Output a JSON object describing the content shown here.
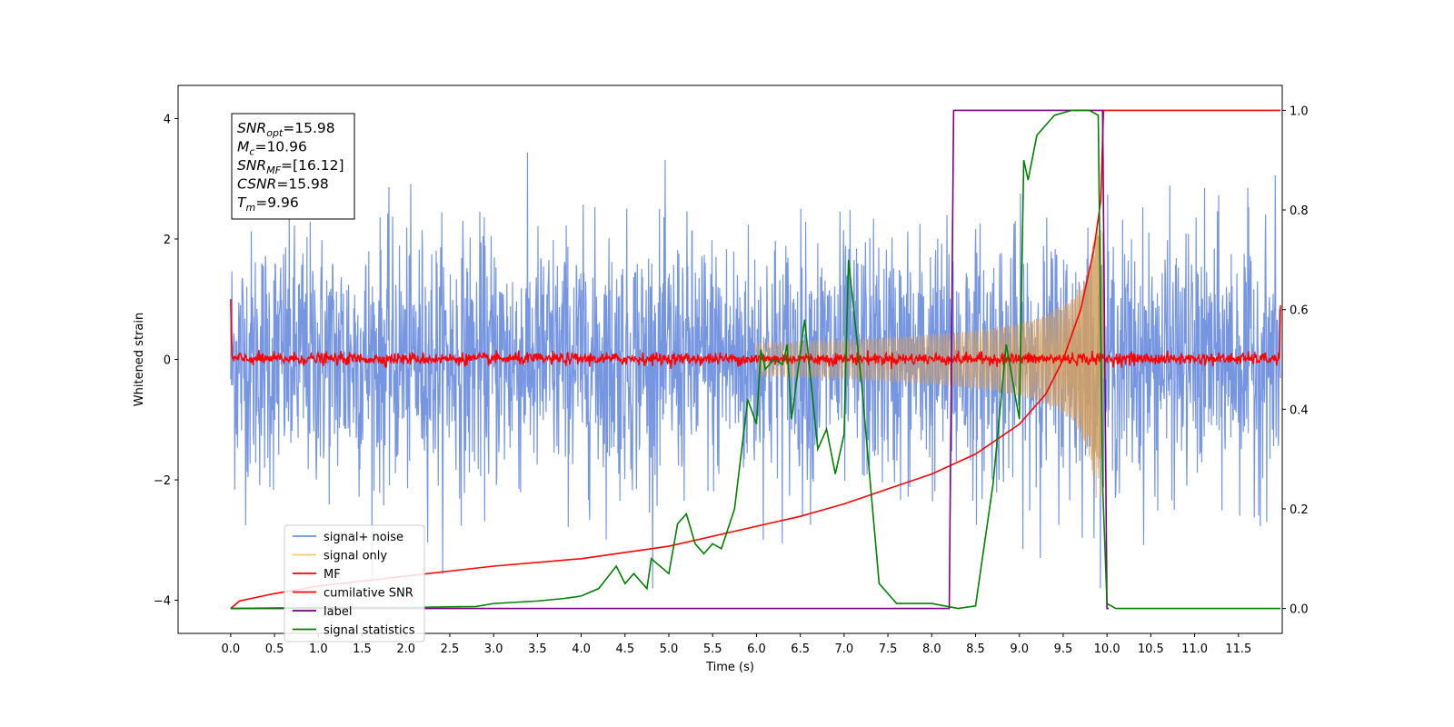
{
  "chart_data": {
    "type": "line",
    "xlabel": "Time (s)",
    "ylabel": "Whitened strain",
    "xlim": [
      -0.6,
      12.0
    ],
    "ylim": [
      -4.55,
      4.55
    ],
    "y2lim": [
      -0.05,
      1.05
    ],
    "xticks": [
      "0.0",
      "0.5",
      "1.0",
      "1.5",
      "2.0",
      "2.5",
      "3.0",
      "3.5",
      "4.0",
      "4.5",
      "5.0",
      "5.5",
      "6.0",
      "6.5",
      "7.0",
      "7.5",
      "8.0",
      "8.5",
      "9.0",
      "9.5",
      "10.0",
      "10.5",
      "11.0",
      "11.5"
    ],
    "yticks": [
      "4",
      "2",
      "0",
      "−2",
      "−4"
    ],
    "y2ticks": [
      "1.0",
      "0.8",
      "0.6",
      "0.4",
      "0.2",
      "0.0"
    ],
    "grid": false,
    "legend_position": "lower-left",
    "legend": [
      {
        "label": "signal+ noise",
        "color": "#7090e0"
      },
      {
        "label": "signal only",
        "color": "#ffc878"
      },
      {
        "label": "MF",
        "color": "#ff0000"
      },
      {
        "label": "cumilative SNR",
        "color": "#ff0000"
      },
      {
        "label": "label",
        "color": "#7a0080"
      },
      {
        "label": "signal statistics",
        "color": "#008000"
      }
    ],
    "annotation": {
      "snr_opt": "15.98",
      "mc": "10.96",
      "snr_mf": "[16.12]",
      "csnr": "15.98",
      "tm": "9.96"
    },
    "series": [
      {
        "name": "signal+ noise",
        "axis": "left",
        "description": "white noise band",
        "approx_range": [
          -3.8,
          3.6
        ],
        "t_range": [
          0.0,
          11.98
        ]
      },
      {
        "name": "signal only",
        "axis": "left",
        "description": "chirp envelope growing to merger",
        "merger_time": 9.96,
        "peak_amplitude": 2.3
      },
      {
        "name": "MF",
        "axis": "left",
        "description": "matched filter output near zero",
        "spikes": [
          {
            "t": 0.0,
            "v": 1.0
          },
          {
            "t": 11.98,
            "v": 0.9
          }
        ]
      },
      {
        "name": "cumilative SNR",
        "axis": "right",
        "points": [
          [
            0.0,
            0.0
          ],
          [
            0.1,
            0.015
          ],
          [
            0.5,
            0.03
          ],
          [
            1.0,
            0.045
          ],
          [
            2.0,
            0.065
          ],
          [
            3.0,
            0.085
          ],
          [
            4.0,
            0.1
          ],
          [
            5.0,
            0.125
          ],
          [
            6.0,
            0.165
          ],
          [
            6.5,
            0.185
          ],
          [
            7.0,
            0.21
          ],
          [
            7.5,
            0.24
          ],
          [
            8.0,
            0.27
          ],
          [
            8.5,
            0.31
          ],
          [
            9.0,
            0.37
          ],
          [
            9.3,
            0.43
          ],
          [
            9.5,
            0.5
          ],
          [
            9.7,
            0.6
          ],
          [
            9.85,
            0.72
          ],
          [
            9.93,
            0.82
          ],
          [
            9.96,
            1.0
          ],
          [
            11.98,
            1.0
          ]
        ]
      },
      {
        "name": "label",
        "axis": "right",
        "points": [
          [
            0.0,
            0.0
          ],
          [
            8.2,
            0.0
          ],
          [
            8.25,
            1.0
          ],
          [
            9.95,
            1.0
          ],
          [
            10.0,
            0.0
          ],
          [
            10.02,
            0.0
          ]
        ]
      },
      {
        "name": "signal statistics",
        "axis": "right",
        "points": [
          [
            0.0,
            0.0
          ],
          [
            1.0,
            0.002
          ],
          [
            2.0,
            0.002
          ],
          [
            2.8,
            0.004
          ],
          [
            3.0,
            0.01
          ],
          [
            3.5,
            0.015
          ],
          [
            3.8,
            0.02
          ],
          [
            4.0,
            0.025
          ],
          [
            4.2,
            0.04
          ],
          [
            4.4,
            0.085
          ],
          [
            4.5,
            0.05
          ],
          [
            4.6,
            0.07
          ],
          [
            4.75,
            0.04
          ],
          [
            4.8,
            0.1
          ],
          [
            5.0,
            0.07
          ],
          [
            5.1,
            0.17
          ],
          [
            5.2,
            0.19
          ],
          [
            5.3,
            0.13
          ],
          [
            5.4,
            0.11
          ],
          [
            5.5,
            0.13
          ],
          [
            5.6,
            0.12
          ],
          [
            5.75,
            0.2
          ],
          [
            5.9,
            0.42
          ],
          [
            6.0,
            0.37
          ],
          [
            6.05,
            0.52
          ],
          [
            6.1,
            0.48
          ],
          [
            6.2,
            0.5
          ],
          [
            6.3,
            0.49
          ],
          [
            6.35,
            0.53
          ],
          [
            6.4,
            0.38
          ],
          [
            6.55,
            0.58
          ],
          [
            6.7,
            0.32
          ],
          [
            6.8,
            0.36
          ],
          [
            6.9,
            0.27
          ],
          [
            7.0,
            0.35
          ],
          [
            7.05,
            0.7
          ],
          [
            7.2,
            0.45
          ],
          [
            7.4,
            0.05
          ],
          [
            7.6,
            0.01
          ],
          [
            8.0,
            0.01
          ],
          [
            8.3,
            0.0
          ],
          [
            8.5,
            0.005
          ],
          [
            8.7,
            0.25
          ],
          [
            8.85,
            0.53
          ],
          [
            9.0,
            0.38
          ],
          [
            9.05,
            0.9
          ],
          [
            9.1,
            0.86
          ],
          [
            9.2,
            0.95
          ],
          [
            9.4,
            0.99
          ],
          [
            9.6,
            1.0
          ],
          [
            9.8,
            1.0
          ],
          [
            9.9,
            0.99
          ],
          [
            9.95,
            0.25
          ],
          [
            10.0,
            0.01
          ],
          [
            10.1,
            0.0
          ],
          [
            11.98,
            0.0
          ]
        ]
      }
    ]
  }
}
